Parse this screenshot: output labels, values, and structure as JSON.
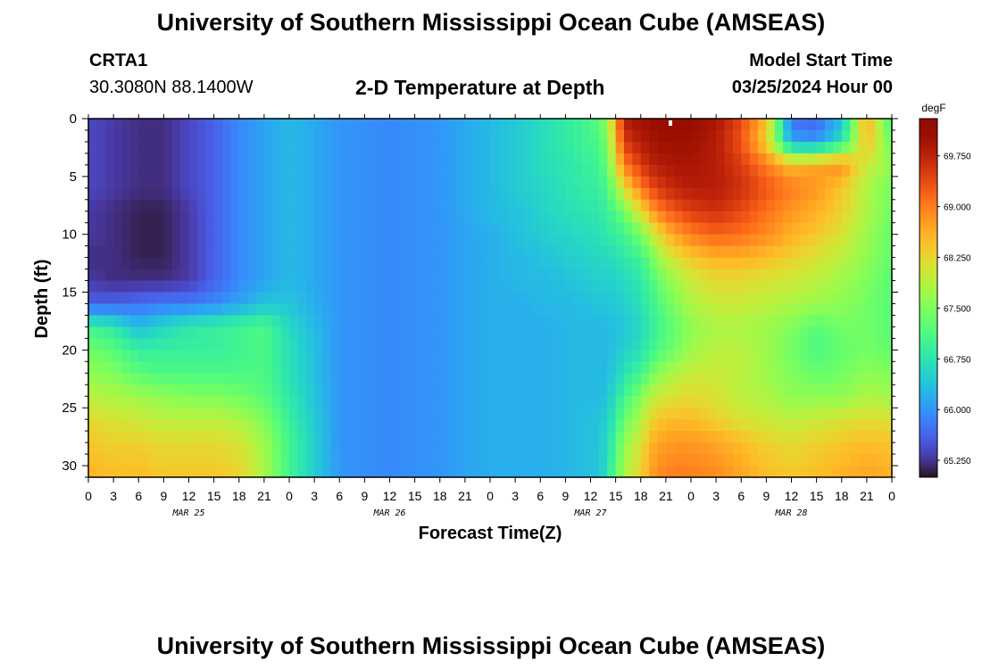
{
  "page": {
    "title": "University of Southern Mississippi Ocean Cube (AMSEAS)",
    "footer_title": "University of Southern Mississippi Ocean Cube (AMSEAS)",
    "station_id": "CRTA1",
    "station_coords": "30.3080N  88.1400W",
    "plot_title": "2-D Temperature at Depth",
    "model_start_label": "Model Start Time",
    "model_start_value": "03/25/2024 Hour 00"
  },
  "chart_data": {
    "type": "heatmap",
    "title": "2-D Temperature at Depth",
    "xlabel": "Forecast Time(Z)",
    "ylabel": "Depth (ft)",
    "x_range_hours": [
      0,
      96
    ],
    "x_tick_step_hours": 3,
    "x_tick_labels": [
      "0",
      "3",
      "6",
      "9",
      "12",
      "15",
      "18",
      "21",
      "0",
      "3",
      "6",
      "9",
      "12",
      "15",
      "18",
      "21",
      "0",
      "3",
      "6",
      "9",
      "12",
      "15",
      "18",
      "21",
      "0",
      "3",
      "6",
      "9",
      "12",
      "15",
      "18",
      "21",
      "0"
    ],
    "day_labels": [
      {
        "label": "MAR 25",
        "hour": 12
      },
      {
        "label": "MAR 26",
        "hour": 36
      },
      {
        "label": "MAR 27",
        "hour": 60
      },
      {
        "label": "MAR 28",
        "hour": 84
      }
    ],
    "y_range_ft": [
      0,
      31
    ],
    "y_ticks": [
      0,
      5,
      10,
      15,
      20,
      25,
      30
    ],
    "y_inverted": true,
    "colorbar": {
      "unit": "degF",
      "range": [
        65.0,
        70.3
      ],
      "labels": [
        "69.750",
        "69.000",
        "68.250",
        "67.500",
        "66.750",
        "66.000",
        "65.250"
      ]
    },
    "temperature_anchors_degF": {
      "hours": [
        0,
        3,
        6,
        9,
        12,
        15,
        18,
        21,
        24,
        30,
        36,
        42,
        48,
        52,
        55,
        58,
        61,
        62,
        64,
        66,
        67,
        68,
        70,
        72,
        75,
        78,
        81,
        84,
        87,
        90,
        93,
        96
      ],
      "depths_ft": [
        0,
        2,
        4,
        6,
        8,
        10,
        12,
        14,
        16,
        18,
        20,
        22,
        24,
        26,
        28,
        31
      ],
      "values": [
        [
          65.4,
          65.3,
          65.2,
          65.2,
          65.4,
          65.6,
          65.9,
          66.1,
          66.3,
          66.0,
          65.9,
          66.0,
          66.3,
          66.5,
          66.7,
          66.9,
          67.2,
          67.6,
          69.8,
          70.0,
          70.0,
          70.1,
          70.1,
          70.1,
          69.9,
          69.4,
          68.5,
          65.7,
          65.6,
          66.3,
          68.7,
          67.0
        ],
        [
          65.4,
          65.3,
          65.2,
          65.2,
          65.4,
          65.6,
          65.9,
          66.1,
          66.3,
          66.0,
          65.9,
          66.0,
          66.3,
          66.5,
          66.7,
          66.9,
          67.1,
          67.5,
          69.5,
          69.8,
          69.9,
          70.0,
          70.0,
          70.0,
          69.8,
          69.3,
          68.3,
          66.1,
          66.0,
          66.7,
          68.5,
          67.3
        ],
        [
          65.4,
          65.3,
          65.2,
          65.2,
          65.4,
          65.6,
          65.9,
          66.1,
          66.3,
          66.0,
          65.9,
          66.0,
          66.3,
          66.5,
          66.7,
          66.8,
          67.0,
          67.3,
          69.0,
          69.5,
          69.7,
          69.8,
          69.9,
          69.9,
          69.8,
          69.5,
          69.0,
          68.5,
          68.7,
          68.9,
          68.0,
          67.6
        ],
        [
          65.4,
          65.3,
          65.2,
          65.2,
          65.4,
          65.6,
          65.9,
          66.1,
          66.3,
          66.0,
          65.9,
          66.0,
          66.3,
          66.5,
          66.6,
          66.8,
          66.9,
          67.1,
          68.2,
          69.0,
          69.3,
          69.5,
          69.7,
          69.8,
          69.8,
          69.6,
          69.3,
          69.0,
          68.8,
          68.4,
          67.8,
          67.4
        ],
        [
          65.3,
          65.2,
          65.1,
          65.1,
          65.3,
          65.6,
          65.9,
          66.1,
          66.3,
          66.0,
          65.9,
          66.0,
          66.3,
          66.4,
          66.6,
          66.7,
          66.8,
          66.9,
          67.4,
          68.2,
          68.6,
          69.0,
          69.3,
          69.5,
          69.6,
          69.4,
          69.1,
          68.8,
          68.6,
          68.3,
          67.8,
          67.4
        ],
        [
          65.3,
          65.2,
          65.1,
          65.1,
          65.3,
          65.6,
          65.9,
          66.1,
          66.3,
          66.0,
          65.9,
          66.0,
          66.2,
          66.4,
          66.5,
          66.6,
          66.7,
          66.8,
          67.0,
          67.4,
          67.8,
          68.2,
          68.7,
          69.0,
          69.2,
          69.1,
          68.9,
          68.6,
          68.4,
          68.1,
          67.7,
          67.3
        ],
        [
          65.2,
          65.2,
          65.1,
          65.1,
          65.3,
          65.6,
          65.9,
          66.1,
          66.3,
          66.0,
          65.9,
          66.0,
          66.2,
          66.3,
          66.4,
          66.5,
          66.6,
          66.6,
          66.8,
          67.0,
          67.3,
          67.7,
          68.1,
          68.4,
          68.6,
          68.6,
          68.5,
          68.3,
          68.1,
          67.9,
          67.6,
          67.3
        ],
        [
          65.3,
          65.2,
          65.2,
          65.2,
          65.3,
          65.6,
          65.9,
          66.1,
          66.3,
          66.0,
          65.9,
          66.0,
          66.2,
          66.3,
          66.3,
          66.4,
          66.5,
          66.5,
          66.6,
          66.8,
          67.0,
          67.3,
          67.7,
          68.0,
          68.2,
          68.2,
          68.1,
          68.0,
          67.9,
          67.7,
          67.5,
          67.2
        ],
        [
          65.6,
          65.6,
          65.7,
          65.8,
          65.8,
          65.9,
          66.1,
          66.4,
          66.4,
          66.0,
          65.9,
          66.0,
          66.2,
          66.2,
          66.3,
          66.3,
          66.4,
          66.4,
          66.5,
          66.7,
          66.9,
          67.1,
          67.5,
          67.8,
          68.0,
          68.0,
          67.9,
          67.8,
          67.7,
          67.6,
          67.4,
          67.2
        ],
        [
          67.0,
          66.8,
          66.3,
          66.6,
          66.8,
          66.9,
          67.0,
          67.1,
          66.6,
          66.0,
          65.9,
          66.0,
          66.2,
          66.2,
          66.2,
          66.3,
          66.3,
          66.3,
          66.4,
          66.6,
          66.8,
          67.0,
          67.3,
          67.6,
          67.8,
          67.8,
          67.7,
          67.5,
          67.2,
          67.4,
          67.4,
          67.2
        ],
        [
          67.4,
          67.2,
          66.9,
          66.9,
          66.9,
          66.9,
          67.0,
          67.1,
          66.7,
          66.0,
          65.9,
          66.0,
          66.2,
          66.2,
          66.2,
          66.3,
          66.3,
          66.3,
          66.5,
          66.7,
          66.9,
          67.1,
          67.4,
          67.7,
          67.9,
          67.9,
          67.7,
          67.4,
          67.1,
          67.3,
          67.4,
          67.3
        ],
        [
          67.6,
          67.5,
          67.2,
          67.1,
          67.1,
          67.1,
          67.1,
          67.1,
          66.7,
          66.0,
          65.9,
          66.0,
          66.2,
          66.2,
          66.2,
          66.3,
          66.3,
          66.3,
          66.7,
          67.0,
          67.3,
          67.6,
          67.8,
          68.0,
          68.0,
          67.9,
          67.7,
          67.5,
          67.3,
          67.4,
          67.6,
          67.5
        ],
        [
          67.9,
          67.8,
          67.7,
          67.6,
          67.5,
          67.5,
          67.4,
          67.2,
          66.8,
          66.0,
          65.9,
          66.0,
          66.2,
          66.2,
          66.2,
          66.3,
          66.3,
          66.4,
          67.0,
          67.5,
          67.8,
          68.0,
          68.1,
          68.2,
          68.1,
          67.9,
          67.8,
          67.6,
          67.6,
          67.6,
          67.8,
          67.7
        ],
        [
          68.2,
          68.1,
          68.0,
          67.9,
          67.9,
          67.9,
          67.8,
          67.5,
          66.9,
          66.0,
          65.9,
          66.0,
          66.2,
          66.2,
          66.2,
          66.3,
          66.4,
          66.5,
          67.3,
          67.8,
          68.2,
          68.4,
          68.5,
          68.5,
          68.3,
          68.1,
          68.0,
          67.9,
          68.0,
          68.1,
          68.2,
          68.1
        ],
        [
          68.4,
          68.3,
          68.3,
          68.2,
          68.2,
          68.2,
          68.1,
          67.7,
          67.0,
          66.0,
          65.9,
          66.0,
          66.2,
          66.2,
          66.2,
          66.3,
          66.4,
          66.6,
          67.6,
          68.1,
          68.5,
          68.7,
          68.8,
          68.8,
          68.7,
          68.5,
          68.3,
          68.2,
          68.3,
          68.4,
          68.5,
          68.4
        ],
        [
          68.6,
          68.5,
          68.5,
          68.4,
          68.4,
          68.4,
          68.3,
          67.8,
          67.0,
          66.0,
          65.9,
          66.0,
          66.2,
          66.2,
          66.2,
          66.3,
          66.4,
          66.7,
          67.8,
          68.3,
          68.7,
          68.9,
          69.0,
          69.0,
          68.9,
          68.7,
          68.5,
          68.4,
          68.5,
          68.6,
          68.7,
          68.6
        ]
      ]
    },
    "colors": {
      "plot_border": "#000000",
      "colormap": "turbo",
      "marker": "#ffffff"
    }
  }
}
